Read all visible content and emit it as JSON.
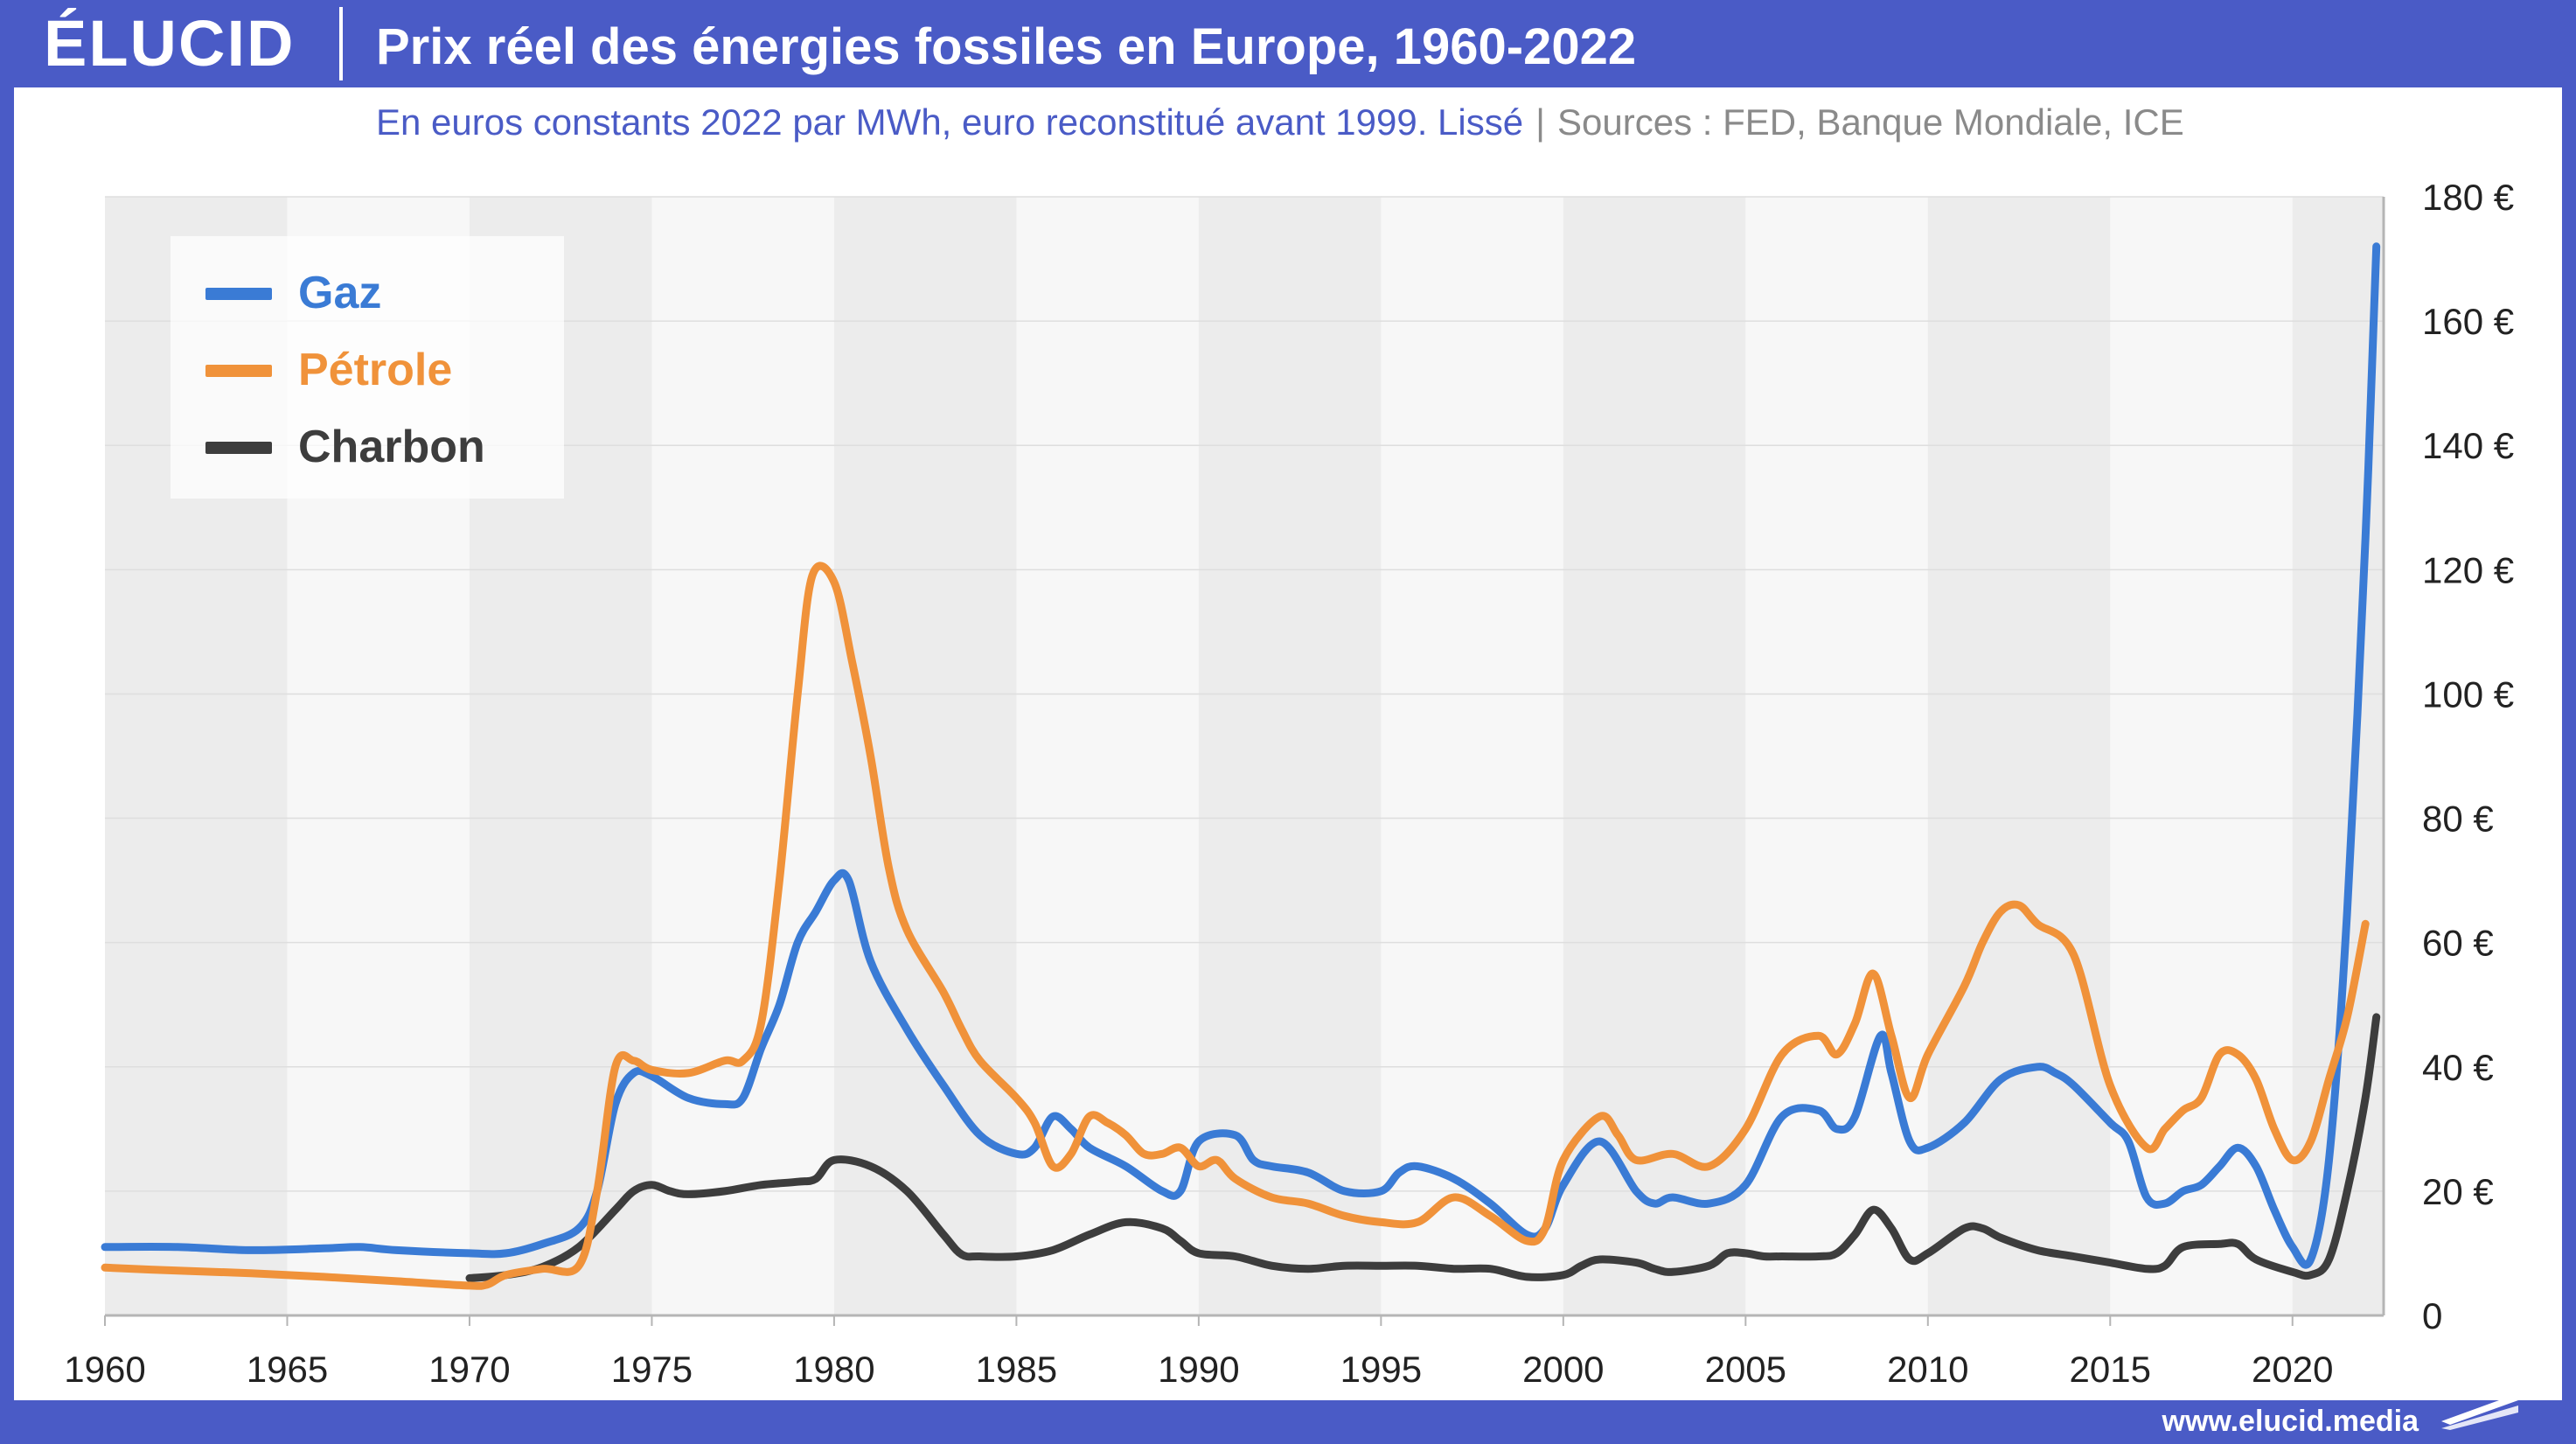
{
  "header": {
    "logo": "ÉLUCID",
    "title": "Prix réel des énergies fossiles en Europe, 1960-2022"
  },
  "subtitle": {
    "main": "En euros constants 2022 par MWh, euro reconstitué avant 1999. Lissé",
    "separator": "|",
    "sources": "Sources : FED, Banque Mondiale, ICE"
  },
  "footer": {
    "url": "www.elucid.media"
  },
  "colors": {
    "brand": "#4a5bc6",
    "gaz": "#3a7bd5",
    "petrole": "#f0923a",
    "charbon": "#3d3d3d"
  },
  "chart_data": {
    "type": "line",
    "xlim": [
      1960,
      2022.5
    ],
    "ylim": [
      0,
      180
    ],
    "xticks": [
      "1960",
      "1965",
      "1970",
      "1975",
      "1980",
      "1985",
      "1990",
      "1995",
      "2000",
      "2005",
      "2010",
      "2015",
      "2020"
    ],
    "yticks": [
      "0",
      "20 €",
      "40 €",
      "60 €",
      "80 €",
      "100 €",
      "120 €",
      "140 €",
      "160 €",
      "180 €"
    ],
    "grid": true,
    "legend_position": "top-left",
    "series": [
      {
        "name": "Gaz",
        "color": "#3a7bd5",
        "points": [
          [
            1960,
            11
          ],
          [
            1962,
            11
          ],
          [
            1964,
            10.5
          ],
          [
            1966,
            10.8
          ],
          [
            1967,
            11
          ],
          [
            1968,
            10.5
          ],
          [
            1970,
            10
          ],
          [
            1971,
            10
          ],
          [
            1972,
            11.5
          ],
          [
            1973,
            14
          ],
          [
            1973.5,
            20
          ],
          [
            1974,
            34
          ],
          [
            1974.5,
            39
          ],
          [
            1975,
            38.5
          ],
          [
            1976,
            35
          ],
          [
            1977,
            34
          ],
          [
            1977.5,
            35
          ],
          [
            1978,
            43
          ],
          [
            1978.5,
            50
          ],
          [
            1979,
            60
          ],
          [
            1979.5,
            65
          ],
          [
            1980,
            70
          ],
          [
            1980.4,
            70
          ],
          [
            1981,
            57
          ],
          [
            1982,
            46
          ],
          [
            1983,
            37
          ],
          [
            1984,
            29
          ],
          [
            1985,
            26
          ],
          [
            1985.5,
            27
          ],
          [
            1986,
            32
          ],
          [
            1986.5,
            30
          ],
          [
            1987,
            27
          ],
          [
            1988,
            24
          ],
          [
            1989,
            20
          ],
          [
            1989.5,
            20
          ],
          [
            1990,
            28
          ],
          [
            1991,
            29
          ],
          [
            1991.5,
            25
          ],
          [
            1992,
            24
          ],
          [
            1993,
            23
          ],
          [
            1994,
            20
          ],
          [
            1995,
            20
          ],
          [
            1995.5,
            23
          ],
          [
            1996,
            24
          ],
          [
            1997,
            22
          ],
          [
            1998,
            18
          ],
          [
            1999,
            13
          ],
          [
            1999.5,
            14
          ],
          [
            2000,
            21
          ],
          [
            2001,
            28
          ],
          [
            2002,
            20
          ],
          [
            2002.5,
            18
          ],
          [
            2003,
            19
          ],
          [
            2004,
            18
          ],
          [
            2005,
            21
          ],
          [
            2006,
            32
          ],
          [
            2007,
            33
          ],
          [
            2007.5,
            30
          ],
          [
            2008,
            32
          ],
          [
            2008.7,
            45
          ],
          [
            2009,
            39
          ],
          [
            2009.5,
            28
          ],
          [
            2010,
            27
          ],
          [
            2011,
            31
          ],
          [
            2012,
            38
          ],
          [
            2013,
            40
          ],
          [
            2013.5,
            39
          ],
          [
            2014,
            37
          ],
          [
            2015,
            31
          ],
          [
            2015.5,
            28
          ],
          [
            2016,
            19
          ],
          [
            2016.5,
            18
          ],
          [
            2017,
            20
          ],
          [
            2017.5,
            21
          ],
          [
            2018,
            24
          ],
          [
            2018.5,
            27
          ],
          [
            2019,
            24
          ],
          [
            2019.5,
            17
          ],
          [
            2020,
            11
          ],
          [
            2020.5,
            9
          ],
          [
            2021,
            25
          ],
          [
            2021.5,
            65
          ],
          [
            2022,
            125
          ],
          [
            2022.3,
            172
          ]
        ]
      },
      {
        "name": "Pétrole",
        "color": "#f0923a",
        "points": [
          [
            1960,
            7.7
          ],
          [
            1962,
            7.2
          ],
          [
            1964,
            6.8
          ],
          [
            1966,
            6.2
          ],
          [
            1968,
            5.5
          ],
          [
            1970,
            4.8
          ],
          [
            1970.5,
            5
          ],
          [
            1971,
            6.5
          ],
          [
            1972,
            7.5
          ],
          [
            1973,
            8
          ],
          [
            1973.5,
            20
          ],
          [
            1974,
            40
          ],
          [
            1974.5,
            41
          ],
          [
            1975,
            39.5
          ],
          [
            1976,
            39
          ],
          [
            1977,
            41
          ],
          [
            1977.5,
            41
          ],
          [
            1978,
            47
          ],
          [
            1978.5,
            70
          ],
          [
            1979,
            100
          ],
          [
            1979.4,
            119
          ],
          [
            1980,
            118
          ],
          [
            1980.5,
            105
          ],
          [
            1981,
            90
          ],
          [
            1981.5,
            72
          ],
          [
            1982,
            62
          ],
          [
            1983,
            52
          ],
          [
            1983.5,
            46
          ],
          [
            1984,
            41
          ],
          [
            1985,
            35
          ],
          [
            1985.5,
            31
          ],
          [
            1986,
            24
          ],
          [
            1986.5,
            26
          ],
          [
            1987,
            32
          ],
          [
            1987.5,
            31
          ],
          [
            1988,
            29
          ],
          [
            1988.5,
            26
          ],
          [
            1989,
            26
          ],
          [
            1989.5,
            27
          ],
          [
            1990,
            24
          ],
          [
            1990.5,
            25
          ],
          [
            1991,
            22
          ],
          [
            1992,
            19
          ],
          [
            1993,
            18
          ],
          [
            1994,
            16
          ],
          [
            1995,
            15
          ],
          [
            1996,
            15
          ],
          [
            1997,
            19
          ],
          [
            1998,
            16
          ],
          [
            1999,
            12
          ],
          [
            1999.5,
            14
          ],
          [
            2000,
            25
          ],
          [
            2001,
            32
          ],
          [
            2001.5,
            29
          ],
          [
            2002,
            25
          ],
          [
            2003,
            26
          ],
          [
            2004,
            24
          ],
          [
            2005,
            30
          ],
          [
            2006,
            42
          ],
          [
            2007,
            45
          ],
          [
            2007.5,
            42
          ],
          [
            2008,
            47
          ],
          [
            2008.5,
            55
          ],
          [
            2009,
            45
          ],
          [
            2009.5,
            35
          ],
          [
            2010,
            42
          ],
          [
            2011,
            53
          ],
          [
            2011.5,
            60
          ],
          [
            2012,
            65
          ],
          [
            2012.5,
            66
          ],
          [
            2013,
            63
          ],
          [
            2014,
            58
          ],
          [
            2015,
            37
          ],
          [
            2016,
            27
          ],
          [
            2016.5,
            30
          ],
          [
            2017,
            33
          ],
          [
            2017.5,
            35
          ],
          [
            2018,
            42
          ],
          [
            2018.5,
            42
          ],
          [
            2019,
            38
          ],
          [
            2019.5,
            30
          ],
          [
            2020,
            25
          ],
          [
            2020.5,
            28
          ],
          [
            2021,
            38
          ],
          [
            2021.5,
            48
          ],
          [
            2022,
            63
          ]
        ]
      },
      {
        "name": "Charbon",
        "color": "#3d3d3d",
        "points": [
          [
            1970,
            6
          ],
          [
            1971,
            6.5
          ],
          [
            1972,
            7.8
          ],
          [
            1973,
            11
          ],
          [
            1974,
            17
          ],
          [
            1974.5,
            20
          ],
          [
            1975,
            21
          ],
          [
            1975.5,
            20
          ],
          [
            1976,
            19.5
          ],
          [
            1977,
            20
          ],
          [
            1978,
            21
          ],
          [
            1979,
            21.5
          ],
          [
            1979.5,
            22
          ],
          [
            1980,
            25
          ],
          [
            1981,
            24
          ],
          [
            1982,
            20
          ],
          [
            1983,
            13
          ],
          [
            1983.5,
            9.8
          ],
          [
            1984,
            9.5
          ],
          [
            1985,
            9.5
          ],
          [
            1986,
            10.5
          ],
          [
            1987,
            13
          ],
          [
            1988,
            15
          ],
          [
            1989,
            14
          ],
          [
            1989.5,
            12
          ],
          [
            1990,
            10
          ],
          [
            1991,
            9.5
          ],
          [
            1992,
            8
          ],
          [
            1993,
            7.5
          ],
          [
            1994,
            8
          ],
          [
            1995,
            8
          ],
          [
            1996,
            8
          ],
          [
            1997,
            7.5
          ],
          [
            1998,
            7.5
          ],
          [
            1999,
            6.2
          ],
          [
            2000,
            6.5
          ],
          [
            2000.5,
            8
          ],
          [
            2001,
            9
          ],
          [
            2002,
            8.5
          ],
          [
            2002.5,
            7.5
          ],
          [
            2003,
            7
          ],
          [
            2004,
            8
          ],
          [
            2004.5,
            10
          ],
          [
            2005,
            10
          ],
          [
            2005.5,
            9.5
          ],
          [
            2006,
            9.5
          ],
          [
            2007,
            9.5
          ],
          [
            2007.5,
            10
          ],
          [
            2008,
            13
          ],
          [
            2008.5,
            17
          ],
          [
            2009,
            14
          ],
          [
            2009.5,
            9
          ],
          [
            2010,
            10
          ],
          [
            2011,
            14
          ],
          [
            2011.5,
            14
          ],
          [
            2012,
            12.5
          ],
          [
            2013,
            10.5
          ],
          [
            2014,
            9.5
          ],
          [
            2015,
            8.5
          ],
          [
            2016,
            7.5
          ],
          [
            2016.5,
            8
          ],
          [
            2017,
            11
          ],
          [
            2018,
            11.5
          ],
          [
            2018.5,
            11.5
          ],
          [
            2019,
            9
          ],
          [
            2020,
            7
          ],
          [
            2020.5,
            6.5
          ],
          [
            2021,
            9
          ],
          [
            2021.5,
            20
          ],
          [
            2022,
            35
          ],
          [
            2022.3,
            48
          ]
        ]
      }
    ]
  }
}
